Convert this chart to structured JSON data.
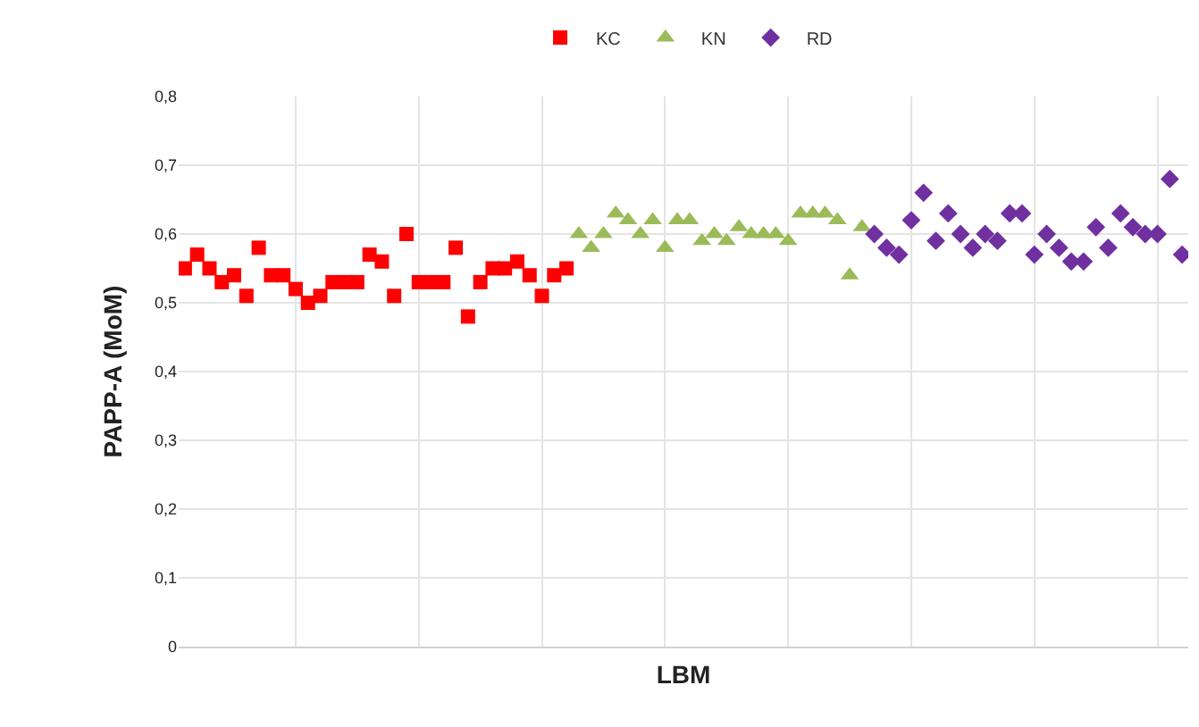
{
  "chart_data": {
    "type": "scatter",
    "xlabel": "LBM",
    "ylabel": "PAPP-A (MoM)",
    "legend": "top",
    "grid": true,
    "tick_labels": "y",
    "categories": [
      null,
      null,
      null,
      null,
      null,
      null,
      null,
      null,
      null,
      null,
      null,
      null,
      null,
      null,
      null,
      null,
      null,
      null,
      null,
      null,
      null,
      null,
      null,
      null,
      null,
      null,
      null,
      null,
      null,
      null,
      null,
      null,
      null,
      null,
      null,
      null,
      null,
      null,
      null,
      null,
      null,
      null,
      null,
      null,
      null,
      null,
      null,
      null,
      null,
      null,
      null,
      null,
      null,
      null,
      null,
      null,
      null,
      null,
      null,
      null,
      null,
      null,
      null,
      null,
      null,
      null,
      null,
      null,
      null,
      null,
      null,
      null,
      null,
      null,
      null,
      null,
      null,
      null,
      null,
      null,
      null,
      null
    ],
    "ylim": [
      0,
      0.8
    ],
    "yticks": [
      {
        "value": 0,
        "label": "0"
      },
      {
        "value": 0.1,
        "label": "0,1"
      },
      {
        "value": 0.2,
        "label": "0,2"
      },
      {
        "value": 0.3,
        "label": "0,3"
      },
      {
        "value": 0.4,
        "label": "0,4"
      },
      {
        "value": 0.5,
        "label": "0,5"
      },
      {
        "value": 0.6,
        "label": "0,6"
      },
      {
        "value": 0.7,
        "label": "0,7"
      },
      {
        "value": 0.8,
        "label": "0,8"
      }
    ],
    "series": [
      {
        "name": "KC",
        "color": "#ff0000",
        "marker": "square",
        "values": [
          0.55,
          0.57,
          0.55,
          0.53,
          0.54,
          0.51,
          0.58,
          0.54,
          0.54,
          0.52,
          0.5,
          0.51,
          0.53,
          0.53,
          0.53,
          0.57,
          0.56,
          0.51,
          0.6,
          0.53,
          0.53,
          0.53,
          0.58,
          0.48,
          0.53,
          0.55,
          0.55,
          0.56,
          0.54,
          0.51,
          0.54,
          0.55,
          null,
          null,
          null,
          null,
          null,
          null,
          null,
          null,
          null,
          null,
          null,
          null,
          null,
          null,
          null,
          null,
          null,
          null,
          null,
          null,
          null,
          null,
          null,
          null,
          null,
          null,
          null,
          null,
          null,
          null,
          null,
          null,
          null,
          null,
          null,
          null,
          null,
          null,
          null,
          null,
          null,
          null,
          null,
          null,
          null,
          null,
          null,
          null,
          null,
          null
        ]
      },
      {
        "name": "KN",
        "color": "#9bbb59",
        "marker": "triangle",
        "values": [
          null,
          null,
          null,
          null,
          null,
          null,
          null,
          null,
          null,
          null,
          null,
          null,
          null,
          null,
          null,
          null,
          null,
          null,
          null,
          null,
          null,
          null,
          null,
          null,
          null,
          null,
          null,
          null,
          null,
          null,
          null,
          null,
          0.6,
          0.58,
          0.6,
          0.63,
          0.62,
          0.6,
          0.62,
          0.58,
          0.62,
          0.62,
          0.59,
          0.6,
          0.59,
          0.61,
          0.6,
          0.6,
          0.6,
          0.59,
          0.63,
          0.63,
          0.63,
          0.62,
          0.54,
          0.61,
          null,
          null,
          null,
          null,
          null,
          null,
          null,
          null,
          null,
          null,
          null,
          null,
          null,
          null,
          null,
          null,
          null,
          null,
          null,
          null,
          null,
          null,
          null,
          null,
          null,
          null
        ]
      },
      {
        "name": "RD",
        "color": "#7030a0",
        "marker": "diamond",
        "values": [
          null,
          null,
          null,
          null,
          null,
          null,
          null,
          null,
          null,
          null,
          null,
          null,
          null,
          null,
          null,
          null,
          null,
          null,
          null,
          null,
          null,
          null,
          null,
          null,
          null,
          null,
          null,
          null,
          null,
          null,
          null,
          null,
          null,
          null,
          null,
          null,
          null,
          null,
          null,
          null,
          null,
          null,
          null,
          null,
          null,
          null,
          null,
          null,
          null,
          null,
          null,
          null,
          null,
          null,
          null,
          null,
          0.6,
          0.58,
          0.57,
          0.62,
          0.66,
          0.59,
          0.63,
          0.6,
          0.58,
          0.6,
          0.59,
          0.63,
          0.63,
          0.57,
          0.6,
          0.58,
          0.56,
          0.56,
          0.61,
          0.58,
          0.63,
          0.61,
          0.6,
          0.6,
          0.68,
          0.57
        ]
      }
    ]
  }
}
